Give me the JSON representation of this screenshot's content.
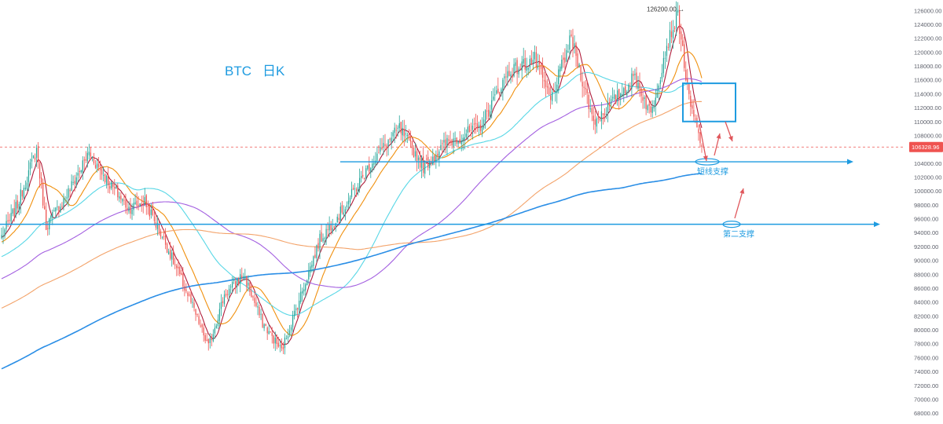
{
  "chart_data": {
    "type": "candlestick",
    "title_parts": [
      "BTC",
      "日K"
    ],
    "y_axis": {
      "ylim": [
        67000,
        127500
      ],
      "ticks": [
        68000,
        70000,
        72000,
        74000,
        76000,
        78000,
        80000,
        82000,
        84000,
        86000,
        88000,
        90000,
        92000,
        94000,
        96000,
        98000,
        100000,
        102000,
        104000,
        106000,
        108000,
        110000,
        112000,
        114000,
        116000,
        118000,
        120000,
        122000,
        124000,
        126000
      ],
      "tick_labels": [
        "68000.00",
        "70000.00",
        "72000.00",
        "74000.00",
        "76000.00",
        "78000.00",
        "80000.00",
        "82000.00",
        "84000.00",
        "86000.00",
        "88000.00",
        "90000.00",
        "92000.00",
        "94000.00",
        "96000.00",
        "98000.00",
        "100000.00",
        "102000.00",
        "104000.00",
        "106000.00",
        "108000.00",
        "110000.00",
        "112000.00",
        "114000.00",
        "116000.00",
        "118000.00",
        "120000.00",
        "122000.00",
        "124000.00",
        "126000.00"
      ]
    },
    "current_price": 106328.96,
    "current_price_label": "106328.96",
    "high_marker": {
      "value": 126200,
      "label": "126200.00 →"
    },
    "anchors": [
      [
        0,
        93500
      ],
      [
        10,
        98000
      ],
      [
        22,
        106000
      ],
      [
        28,
        95000
      ],
      [
        40,
        99000
      ],
      [
        55,
        105500
      ],
      [
        68,
        101000
      ],
      [
        80,
        97500
      ],
      [
        90,
        98500
      ],
      [
        102,
        93000
      ],
      [
        118,
        84500
      ],
      [
        130,
        77500
      ],
      [
        140,
        85000
      ],
      [
        152,
        88000
      ],
      [
        164,
        81000
      ],
      [
        176,
        77000
      ],
      [
        188,
        85000
      ],
      [
        200,
        93000
      ],
      [
        215,
        97500
      ],
      [
        232,
        104000
      ],
      [
        250,
        109000
      ],
      [
        265,
        103500
      ],
      [
        280,
        107000
      ],
      [
        300,
        109000
      ],
      [
        318,
        117000
      ],
      [
        335,
        119000
      ],
      [
        345,
        113000
      ],
      [
        358,
        122000
      ],
      [
        372,
        110000
      ],
      [
        385,
        113000
      ],
      [
        398,
        116500
      ],
      [
        408,
        111000
      ],
      [
        418,
        121000
      ],
      [
        425,
        125500
      ],
      [
        432,
        113000
      ],
      [
        440,
        106329
      ]
    ],
    "ma_lines": [
      {
        "period": 7,
        "color": "#b01c3a"
      },
      {
        "period": 20,
        "color": "#f0900e"
      },
      {
        "period": 60,
        "color": "#58d7e6"
      },
      {
        "period": 120,
        "color": "#a35fe0"
      },
      {
        "period": 200,
        "color": "#f3a36a"
      },
      {
        "period": 365,
        "color": "#2a8ee6"
      }
    ],
    "support_levels": [
      {
        "price": 104200,
        "label": "短线支撑"
      },
      {
        "price": 95200,
        "label": "第二支撑"
      }
    ],
    "resistance_box": {
      "price_high": 115500,
      "price_low": 110000
    },
    "colors": {
      "up": "#26a69a",
      "down": "#ef5350",
      "annotation": "#1e9be0",
      "arrow": "#e0565b",
      "price_line": "#ef5350",
      "axis_text": "#5d606b"
    }
  }
}
